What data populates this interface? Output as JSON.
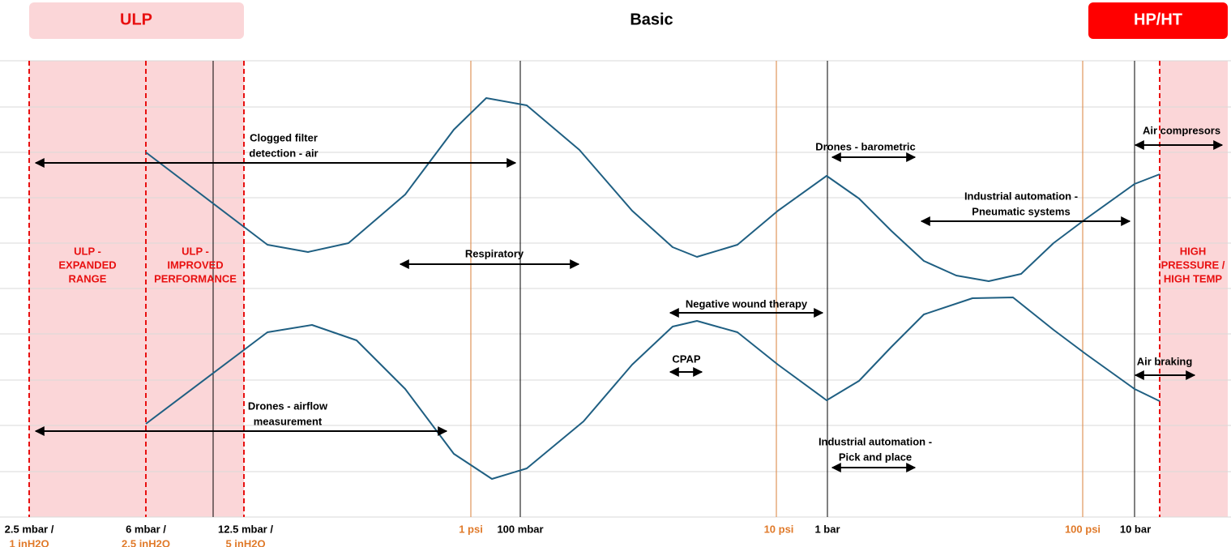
{
  "header": {
    "ulp": "ULP",
    "basic": "Basic",
    "hpht": "HP/HT"
  },
  "regions": [
    {
      "lines": [
        "ULP -",
        "EXPANDED",
        "RANGE"
      ]
    },
    {
      "lines": [
        "ULP -",
        "IMPROVED",
        "PERFORMANCE"
      ]
    },
    {
      "lines": [
        "HIGH",
        "PRESSURE /",
        "HIGH TEMP"
      ]
    }
  ],
  "axis_labels": [
    {
      "lines": [
        "2.5 mbar /",
        "1 inH2O"
      ]
    },
    {
      "lines": [
        "6 mbar /",
        "2.5 inH2O"
      ]
    },
    {
      "lines": [
        "12.5 mbar /",
        "5 inH2O"
      ]
    },
    {
      "lines": [
        "1 psi"
      ]
    },
    {
      "lines": [
        "100 mbar"
      ]
    },
    {
      "lines": [
        "10 psi"
      ]
    },
    {
      "lines": [
        "1 bar"
      ]
    },
    {
      "lines": [
        "100 psi"
      ]
    },
    {
      "lines": [
        "10 bar"
      ]
    }
  ],
  "applications": [
    {
      "lines": [
        "Clogged filter",
        "detection - air"
      ]
    },
    {
      "lines": [
        "Drones - barometric"
      ]
    },
    {
      "lines": [
        "Air compresors"
      ]
    },
    {
      "lines": [
        "Industrial automation -",
        "Pneumatic systems"
      ]
    },
    {
      "lines": [
        "Respiratory"
      ]
    },
    {
      "lines": [
        "Negative wound therapy"
      ]
    },
    {
      "lines": [
        "CPAP"
      ]
    },
    {
      "lines": [
        "Air braking"
      ]
    },
    {
      "lines": [
        "Drones - airflow",
        "measurement"
      ]
    },
    {
      "lines": [
        "Industrial automation -",
        "Pick and place"
      ]
    }
  ]
}
